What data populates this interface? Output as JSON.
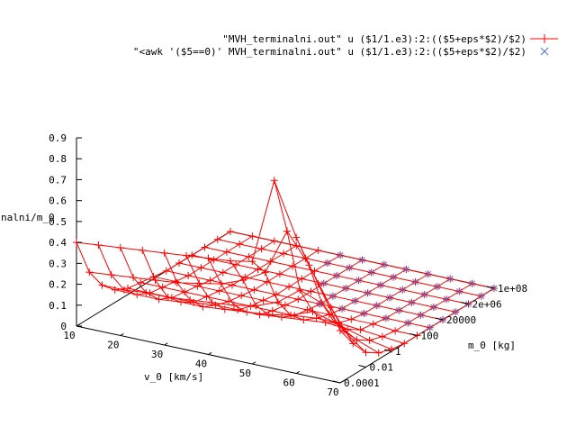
{
  "chart_data": {
    "type": "surface-3d-wireframe",
    "title": "",
    "xlabel": "v_0 [km/s]",
    "ylabel": "m_0 [kg]",
    "zlabel": "nalni/m_0",
    "x_ticks": [
      "10",
      "20",
      "30",
      "40",
      "50",
      "60",
      "70"
    ],
    "y_ticks": [
      "0.0001",
      "0.01",
      "1",
      "100",
      "20000",
      "2e+06",
      "1e+08"
    ],
    "z_ticks": [
      "0",
      "0.1",
      "0.2",
      "0.3",
      "0.4",
      "0.5",
      "0.6",
      "0.7",
      "0.8",
      "0.9"
    ],
    "xlim": [
      10,
      70
    ],
    "zlim": [
      0,
      0.9
    ],
    "legend_position": "top-right",
    "grid": false,
    "series": [
      {
        "name": "\"MVH_terminalni.out\" u ($1/1.e3):2:(($5+eps*$2)/$2)",
        "color": "#ff0000",
        "marker": "plus",
        "x": [
          10,
          15,
          20,
          25,
          30,
          35,
          40,
          45,
          50,
          55,
          60,
          65,
          70
        ],
        "y_index": [
          0,
          1,
          2,
          3,
          4,
          5,
          6,
          7,
          8,
          9,
          10,
          11,
          12
        ],
        "z": [
          [
            0.4,
            0.41,
            0.42,
            0.43,
            0.44,
            0.45,
            0.46,
            0.47,
            0.49,
            0.9,
            0.65,
            0.45,
            0.25
          ],
          [
            0.22,
            0.23,
            0.24,
            0.25,
            0.26,
            0.28,
            0.3,
            0.34,
            0.4,
            0.62,
            0.48,
            0.3,
            0.15
          ],
          [
            0.12,
            0.12,
            0.13,
            0.13,
            0.14,
            0.15,
            0.16,
            0.18,
            0.22,
            0.3,
            0.26,
            0.15,
            0.07
          ],
          [
            0.06,
            0.06,
            0.06,
            0.07,
            0.07,
            0.08,
            0.09,
            0.1,
            0.12,
            0.16,
            0.13,
            0.07,
            0.03
          ],
          [
            0.03,
            0.03,
            0.03,
            0.03,
            0.04,
            0.04,
            0.04,
            0.05,
            0.06,
            0.07,
            0.06,
            0.03,
            0.01
          ],
          [
            0.02,
            0.02,
            0.02,
            0.02,
            0.02,
            0.02,
            0.02,
            0.02,
            0.03,
            0.03,
            0.02,
            0.01,
            0.0
          ],
          [
            0.01,
            0.01,
            0.01,
            0.01,
            0.01,
            0.01,
            0.01,
            0.01,
            0.01,
            0.01,
            0.01,
            0.0,
            0.0
          ],
          [
            0.0,
            0.0,
            0.0,
            0.0,
            0.0,
            0.0,
            0.0,
            0.0,
            0.0,
            0.0,
            0.0,
            0.0,
            0.0
          ],
          [
            0.0,
            0.0,
            0.0,
            0.0,
            0.0,
            0.0,
            0.0,
            0.0,
            0.0,
            0.0,
            0.0,
            0.0,
            0.0
          ],
          [
            0.0,
            0.0,
            0.0,
            0.0,
            0.0,
            0.0,
            0.0,
            0.0,
            0.0,
            0.0,
            0.0,
            0.0,
            0.0
          ],
          [
            0.0,
            0.0,
            0.0,
            0.0,
            0.0,
            0.0,
            0.0,
            0.0,
            0.0,
            0.0,
            0.0,
            0.0,
            0.0
          ],
          [
            0.0,
            0.0,
            0.0,
            0.0,
            0.0,
            0.0,
            0.0,
            0.0,
            0.0,
            0.0,
            0.0,
            0.0,
            0.0
          ],
          [
            0.0,
            0.0,
            0.0,
            0.0,
            0.0,
            0.0,
            0.0,
            0.0,
            0.0,
            0.0,
            0.0,
            0.0,
            0.0
          ]
        ]
      },
      {
        "name": "\"<awk '($5==0)' MVH_terminalni.out\" u ($1/1.e3):2:(($5+eps*$2)/$2)",
        "color": "#4a6fd8",
        "marker": "cross",
        "points": [
          [
            45,
            7
          ],
          [
            50,
            7
          ],
          [
            55,
            7
          ],
          [
            60,
            7
          ],
          [
            65,
            7
          ],
          [
            70,
            7
          ],
          [
            45,
            8
          ],
          [
            50,
            8
          ],
          [
            55,
            8
          ],
          [
            60,
            8
          ],
          [
            65,
            8
          ],
          [
            70,
            8
          ],
          [
            40,
            9
          ],
          [
            45,
            9
          ],
          [
            50,
            9
          ],
          [
            55,
            9
          ],
          [
            60,
            9
          ],
          [
            65,
            9
          ],
          [
            70,
            9
          ],
          [
            40,
            10
          ],
          [
            45,
            10
          ],
          [
            50,
            10
          ],
          [
            55,
            10
          ],
          [
            60,
            10
          ],
          [
            65,
            10
          ],
          [
            70,
            10
          ],
          [
            35,
            11
          ],
          [
            40,
            11
          ],
          [
            45,
            11
          ],
          [
            50,
            11
          ],
          [
            55,
            11
          ],
          [
            60,
            11
          ],
          [
            65,
            11
          ],
          [
            70,
            11
          ],
          [
            35,
            12
          ],
          [
            40,
            12
          ],
          [
            45,
            12
          ],
          [
            50,
            12
          ],
          [
            55,
            12
          ],
          [
            60,
            12
          ],
          [
            65,
            12
          ],
          [
            70,
            12
          ]
        ]
      }
    ]
  }
}
